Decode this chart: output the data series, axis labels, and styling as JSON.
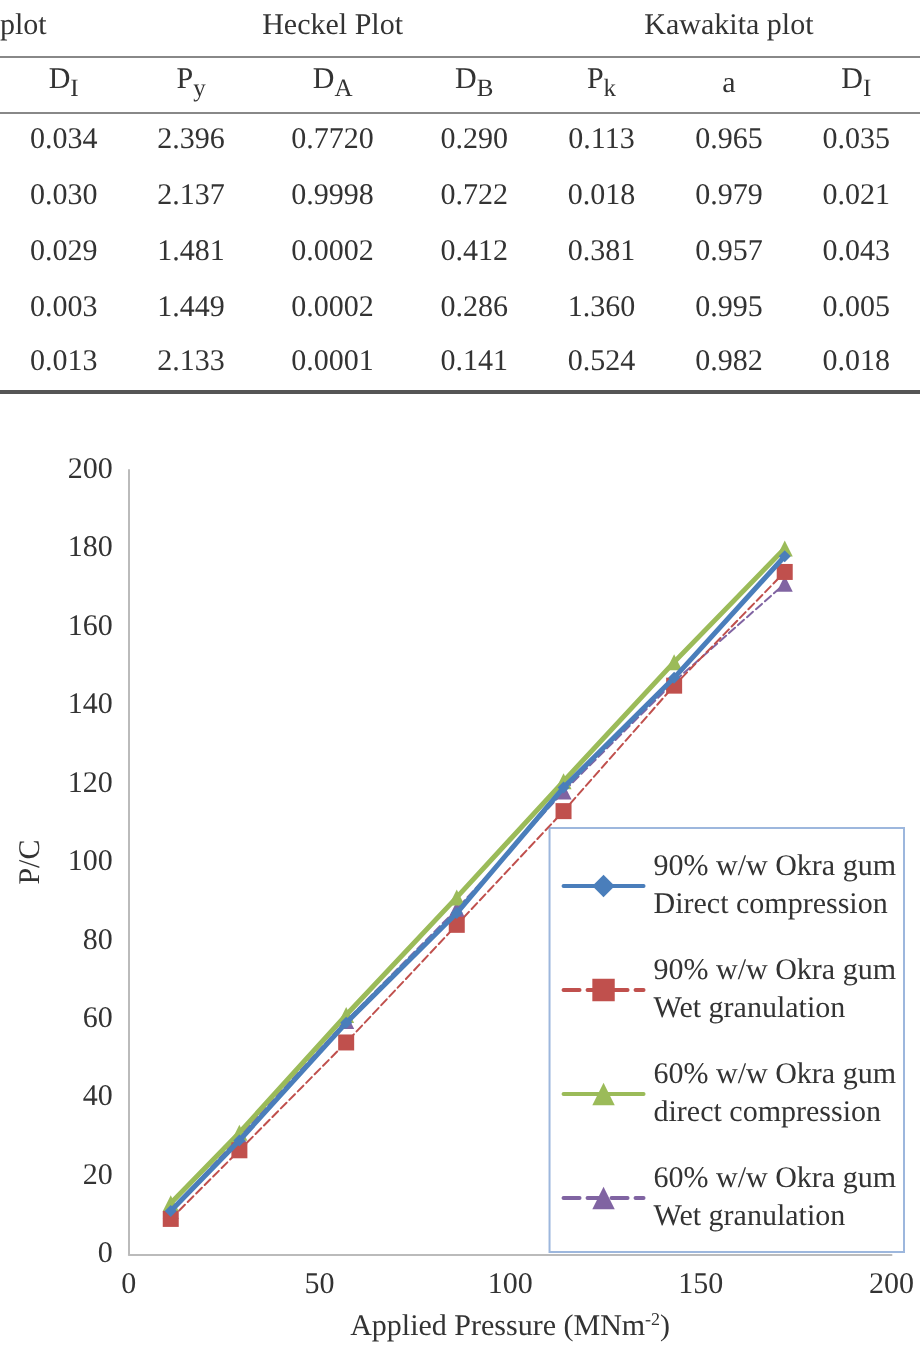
{
  "chart_data": [
    {
      "type": "other",
      "annotations": [
        "plot",
        "Heckel Plot",
        "Kawakita plot",
        "D$_{I}$",
        "P$_{y}$",
        "D$_{A}$",
        "D$_{B}$",
        "P$_{k}$",
        "a",
        "D$_{I}$",
        "0.034",
        "2.396",
        "0.7720",
        "0.290",
        "0.113",
        "0.965",
        "0.035",
        "0.030",
        "2.137",
        "0.9998",
        "0.722",
        "0.018",
        "0.979",
        "0.021",
        "0.029",
        "1.481",
        "0.0002",
        "0.412",
        "0.381",
        "0.957",
        "0.043",
        "0.003",
        "1.449",
        "0.0002",
        "0.286",
        "1.360",
        "0.995",
        "0.005",
        "0.013",
        "2.133",
        "0.0001",
        "0.141",
        "0.524",
        "0.982",
        "0.018"
      ]
    },
    {
      "type": "line",
      "xlabel": "Applied Pressure (MNm$^{-2}$)",
      "ylabel": "P/C",
      "x": [
        11,
        29,
        57,
        86,
        114,
        143,
        172
      ],
      "xlim": [
        0,
        200
      ],
      "xticks": [
        0,
        50,
        100,
        150,
        200
      ],
      "ylim": [
        0,
        200
      ],
      "yticks": [
        0,
        20,
        40,
        60,
        80,
        100,
        120,
        140,
        160,
        180,
        200
      ],
      "grid": false,
      "legend": "bottom right",
      "series": [
        {
          "name": "90% w/w Okra gum\nDirect compression",
          "color": "#4a7ebb",
          "marker": "diamond",
          "line_style": "solid",
          "values": [
            11,
            29,
            59,
            87,
            119,
            147,
            178
          ]
        },
        {
          "name": "90% w/w Okra gum\nWet granulation",
          "color": "#c0504d",
          "marker": "square",
          "line_style": "dashed",
          "values": [
            9,
            26.5,
            54,
            84,
            113,
            145,
            174
          ]
        },
        {
          "name": "60% w/w Okra gum\ndirect compression",
          "color": "#9bbb59",
          "marker": "triangle",
          "line_style": "solid",
          "values": [
            13,
            31,
            61,
            91,
            120.6,
            151,
            180
          ]
        },
        {
          "name": "60% w/w Okra gum\nWet granulation",
          "color": "#8064a2",
          "marker": "triangle",
          "line_style": "dashed",
          "values": [
            11,
            30,
            59.5,
            88,
            118,
            146,
            171
          ]
        }
      ]
    }
  ]
}
